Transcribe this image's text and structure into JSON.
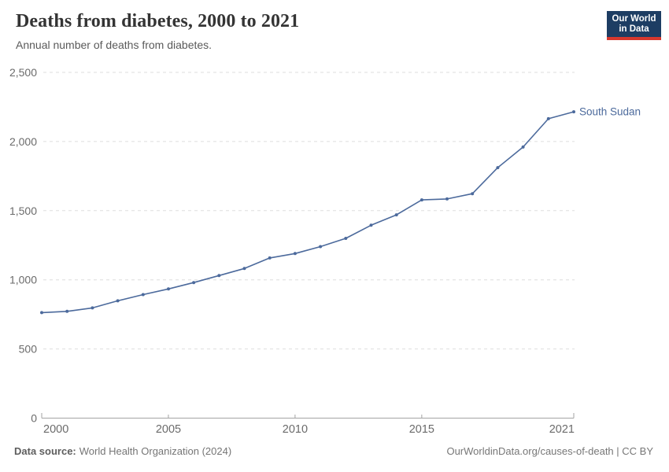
{
  "header": {
    "title": "Deaths from diabetes, 2000 to 2021",
    "subtitle": "Annual number of deaths from diabetes.",
    "logo": {
      "line1": "Our World",
      "line2": "in Data"
    }
  },
  "chart_data": {
    "type": "line",
    "title": "Deaths from diabetes, 2000 to 2021",
    "subtitle": "Annual number of deaths from diabetes.",
    "xlabel": "",
    "ylabel": "",
    "x": [
      2000,
      2001,
      2002,
      2003,
      2004,
      2005,
      2006,
      2007,
      2008,
      2009,
      2010,
      2011,
      2012,
      2013,
      2014,
      2015,
      2016,
      2017,
      2018,
      2019,
      2020,
      2021
    ],
    "series": [
      {
        "name": "South Sudan",
        "color": "#4c6a9c",
        "values": [
          763,
          772,
          797,
          848,
          893,
          934,
          980,
          1031,
          1082,
          1158,
          1190,
          1240,
          1300,
          1395,
          1470,
          1578,
          1585,
          1623,
          1811,
          1960,
          2165,
          2215
        ]
      }
    ],
    "ylim": [
      0,
      2500
    ],
    "yticks": [
      0,
      500,
      1000,
      1500,
      2000,
      2500
    ],
    "ytick_labels": [
      "0",
      "500",
      "1,000",
      "1,500",
      "2,000",
      "2,500"
    ],
    "xticks": [
      2000,
      2005,
      2010,
      2015,
      2021
    ],
    "xtick_labels": [
      "2000",
      "2005",
      "2010",
      "2015",
      "2021"
    ],
    "grid": "horizontal-dashed",
    "legend_position": "end-of-line-label",
    "markers": true
  },
  "footer": {
    "source_label": "Data source:",
    "source_text": "World Health Organization (2024)",
    "credit": "OurWorldinData.org/causes-of-death | CC BY"
  },
  "colors": {
    "accent_line": "#4c6a9c",
    "logo_navy": "#1d3d63",
    "logo_red": "#d7382e",
    "grid": "#dedede",
    "axis": "#a3a3a3",
    "tick_text": "#6b6b6b",
    "title_text": "#343434",
    "subtitle_text": "#5a5a5a",
    "footer_text": "#757575"
  }
}
